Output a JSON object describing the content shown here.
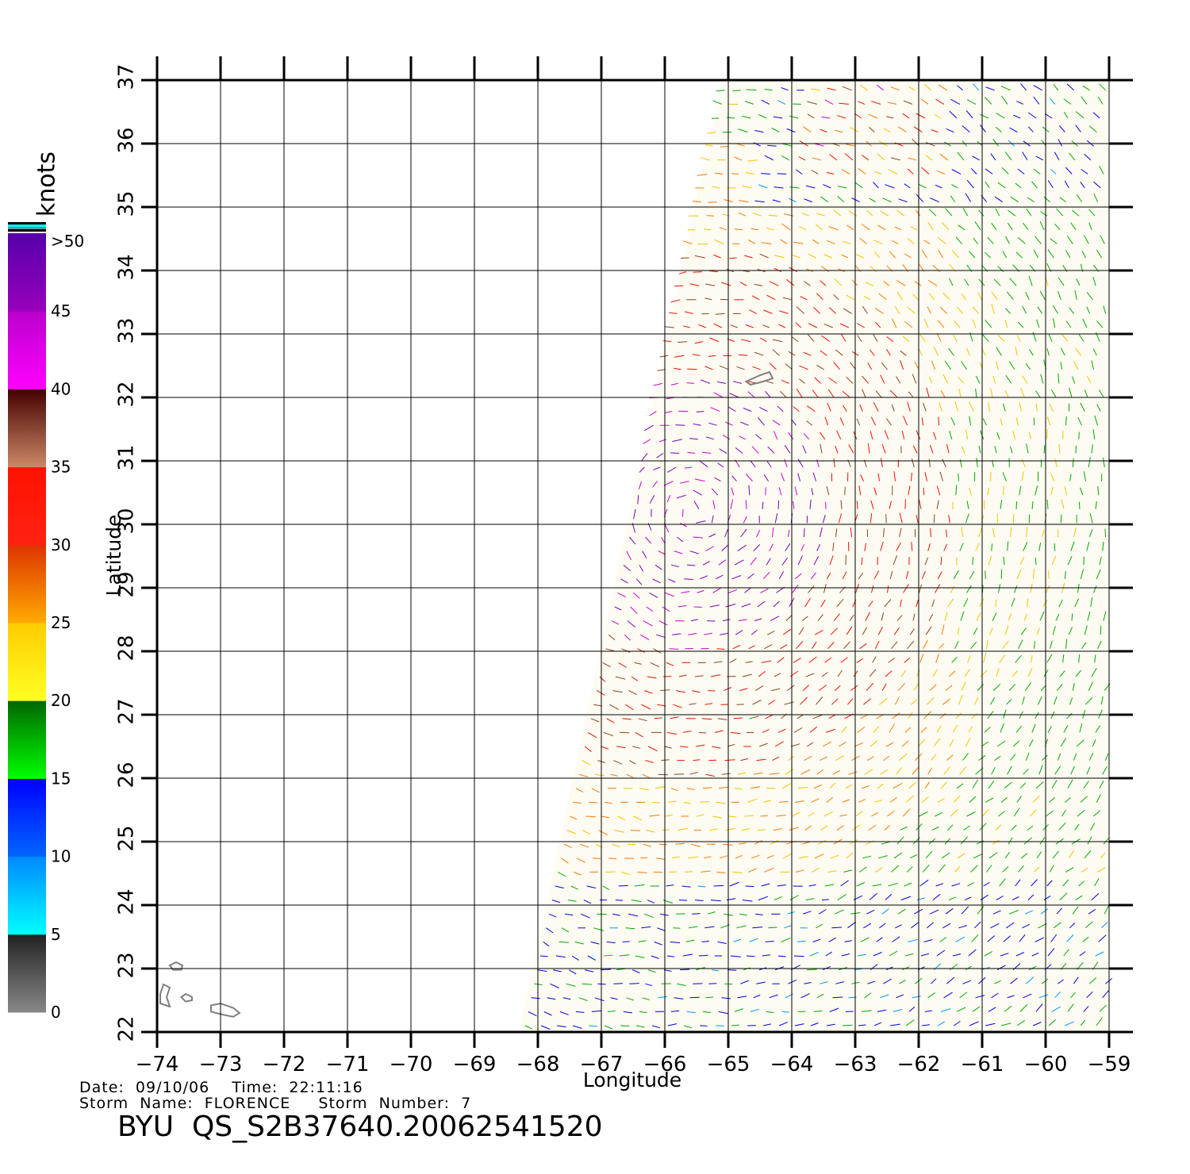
{
  "map": {
    "axes": {
      "xlabel": "Longitude",
      "ylabel": "Latitude",
      "x_ticks": [
        "-74",
        "-73",
        "-72",
        "-71",
        "-70",
        "-69",
        "-68",
        "-67",
        "-66",
        "-65",
        "-64",
        "-63",
        "-62",
        "-61",
        "-60",
        "-59"
      ],
      "y_ticks": [
        "22",
        "23",
        "24",
        "25",
        "26",
        "27",
        "28",
        "29",
        "30",
        "31",
        "32",
        "33",
        "34",
        "35",
        "36",
        "37"
      ],
      "xlim": [
        -74,
        -59
      ],
      "ylim": [
        22,
        37
      ],
      "grid": true
    },
    "colorbar": {
      "unit": "knots",
      "labels": [
        "0",
        "5",
        "10",
        "15",
        "20",
        "25",
        "30",
        "35",
        "40",
        "45",
        ">50"
      ],
      "stops": [
        {
          "from": 0,
          "to": 5,
          "top": "#222222",
          "bottom": "#888888"
        },
        {
          "from": 5,
          "to": 10,
          "top": "#0088ff",
          "bottom": "#00ffff"
        },
        {
          "from": 10,
          "to": 15,
          "top": "#0000ff",
          "bottom": "#0066ff"
        },
        {
          "from": 15,
          "to": 20,
          "top": "#006600",
          "bottom": "#00ff00"
        },
        {
          "from": 20,
          "to": 25,
          "top": "#ffcc00",
          "bottom": "#ffff22"
        },
        {
          "from": 25,
          "to": 30,
          "top": "#dd3300",
          "bottom": "#ffaa00"
        },
        {
          "from": 30,
          "to": 35,
          "top": "#ff1100",
          "bottom": "#ff2211"
        },
        {
          "from": 35,
          "to": 40,
          "top": "#440000",
          "bottom": "#cc8866"
        },
        {
          "from": 40,
          "to": 45,
          "top": "#bb00cc",
          "bottom": "#ff00ff"
        },
        {
          "from": 45,
          "to": 50,
          "top": "#5500aa",
          "bottom": "#9900bb"
        }
      ]
    },
    "swath_corners_lonlat": [
      [
        -68.3,
        22
      ],
      [
        -59,
        22
      ],
      [
        -59,
        37
      ],
      [
        -65.1,
        37
      ]
    ],
    "islands_lonlat": [
      [
        [
          -73.8,
          22.4
        ],
        [
          -73.85,
          22.55
        ],
        [
          -73.8,
          22.7
        ],
        [
          -73.9,
          22.75
        ],
        [
          -73.95,
          22.6
        ],
        [
          -73.95,
          22.45
        ]
      ],
      [
        [
          -73.6,
          23.05
        ],
        [
          -73.7,
          23.1
        ],
        [
          -73.8,
          23.05
        ],
        [
          -73.75,
          22.98
        ],
        [
          -73.62,
          22.98
        ]
      ],
      [
        [
          -73.45,
          22.55
        ],
        [
          -73.55,
          22.6
        ],
        [
          -73.62,
          22.55
        ],
        [
          -73.55,
          22.48
        ],
        [
          -73.45,
          22.5
        ]
      ],
      [
        [
          -72.7,
          22.3
        ],
        [
          -72.8,
          22.38
        ],
        [
          -73.0,
          22.45
        ],
        [
          -73.15,
          22.42
        ],
        [
          -73.15,
          22.32
        ],
        [
          -72.95,
          22.27
        ],
        [
          -72.8,
          22.24
        ]
      ],
      [
        [
          -64.3,
          32.3
        ],
        [
          -64.35,
          32.4
        ],
        [
          -64.5,
          32.35
        ],
        [
          -64.72,
          32.25
        ],
        [
          -64.65,
          32.2
        ],
        [
          -64.45,
          32.25
        ]
      ]
    ]
  },
  "footer": {
    "date_line": "Date:  09/10/06    Time:  22:11:16",
    "storm_line": "Storm  Name:  FLORENCE     Storm  Number:  7",
    "product_id": "BYU  QS_S2B37640.20062541520"
  }
}
